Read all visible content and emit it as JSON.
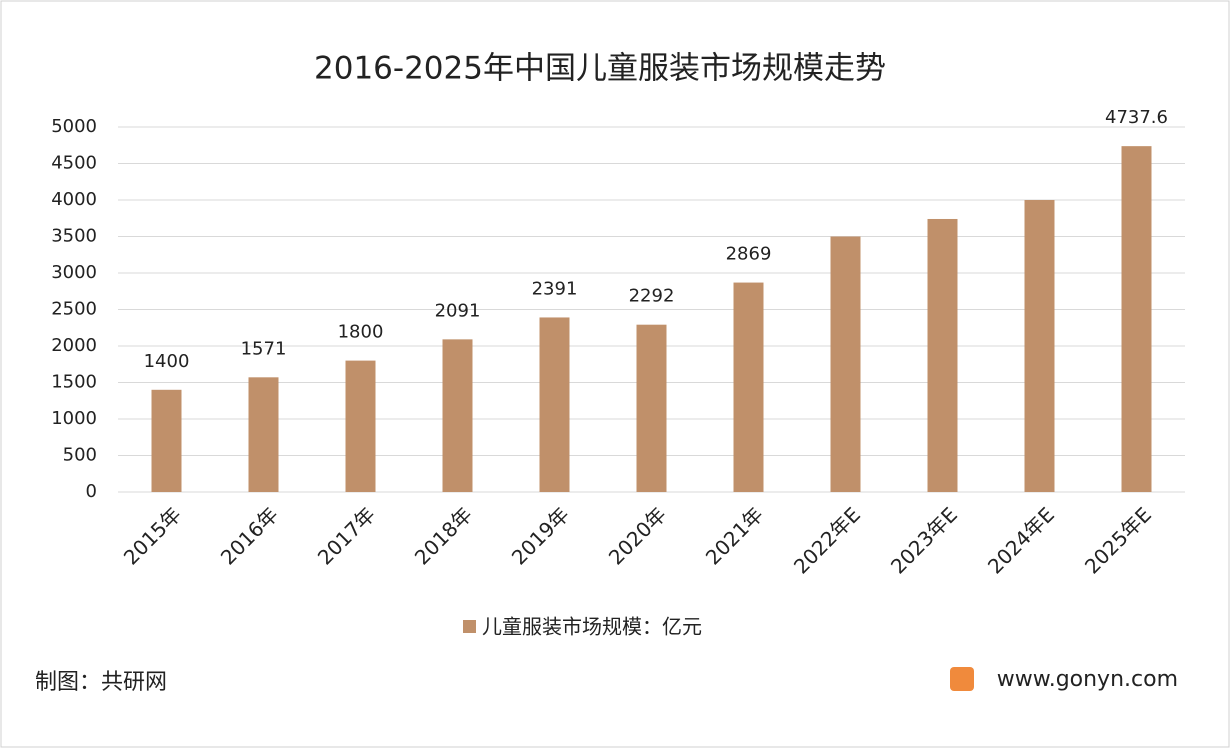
{
  "chart_data": {
    "type": "bar",
    "title": "2016-2025年中国儿童服装市场规模走势",
    "categories": [
      "2015年",
      "2016年",
      "2017年",
      "2018年",
      "2019年",
      "2020年",
      "2021年",
      "2022年E",
      "2023年E",
      "2024年E",
      "2025年E"
    ],
    "series": [
      {
        "name": "儿童服装市场规模：亿元",
        "color": "#c0906a",
        "values": [
          1400,
          1571,
          1800,
          2091,
          2391,
          2292,
          2869,
          3500,
          3740,
          4000,
          4737.6
        ],
        "value_labels": [
          "1400",
          "1571",
          "1800",
          "2091",
          "2391",
          "2292",
          "2869",
          null,
          null,
          null,
          "4737.6"
        ]
      }
    ],
    "ylim": [
      0,
      5000
    ],
    "yticks": [
      0,
      500,
      1000,
      1500,
      2000,
      2500,
      3000,
      3500,
      4000,
      4500,
      5000
    ],
    "grid": true,
    "source": "制图：共研网",
    "website": "www.gonyn.com"
  }
}
